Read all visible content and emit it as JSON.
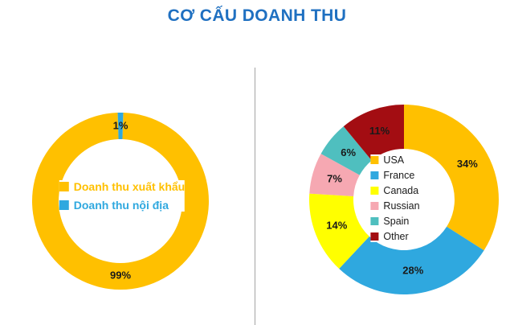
{
  "title": "CƠ CẤU DOANH THU",
  "palette": {
    "title": "#1f70c1",
    "divider": "#a3a3a3",
    "slice_label": "#1a1a1a"
  },
  "chart_data": [
    {
      "type": "pie",
      "subtype": "donut",
      "title": "",
      "categories": [
        "Doanh thu xuất khẩu",
        "Doanh thu nội địa"
      ],
      "values": [
        99,
        1
      ],
      "labels": [
        "99%",
        "1%"
      ],
      "colors": [
        "#FFC000",
        "#2FA8DF"
      ],
      "legend_position": "center",
      "legend_text_colored": true
    },
    {
      "type": "pie",
      "subtype": "donut",
      "title": "",
      "categories": [
        "USA",
        "France",
        "Canada",
        "Russian",
        "Spain",
        "Other"
      ],
      "values": [
        34,
        28,
        14,
        7,
        6,
        11
      ],
      "labels": [
        "34%",
        "28%",
        "14%",
        "7%",
        "6%",
        "11%"
      ],
      "colors": [
        "#FFC000",
        "#2FA8DF",
        "#FFFF00",
        "#F6A8B2",
        "#4FBFBF",
        "#A30D12"
      ],
      "legend_position": "center",
      "legend_text_colored": false
    }
  ]
}
